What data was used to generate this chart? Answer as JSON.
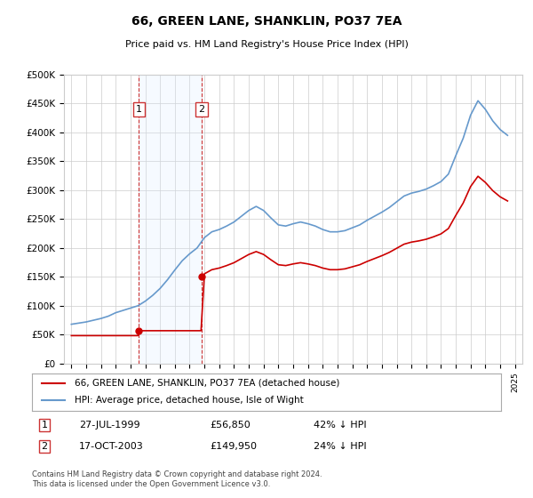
{
  "title": "66, GREEN LANE, SHANKLIN, PO37 7EA",
  "subtitle": "Price paid vs. HM Land Registry's House Price Index (HPI)",
  "legend_line1": "66, GREEN LANE, SHANKLIN, PO37 7EA (detached house)",
  "legend_line2": "HPI: Average price, detached house, Isle of Wight",
  "sale1_label": "1",
  "sale1_date": "27-JUL-1999",
  "sale1_price": 56850,
  "sale1_hpi": "42% ↓ HPI",
  "sale2_label": "2",
  "sale2_date": "17-OCT-2003",
  "sale2_price": 149950,
  "sale2_hpi": "24% ↓ HPI",
  "footer": "Contains HM Land Registry data © Crown copyright and database right 2024.\nThis data is licensed under the Open Government Licence v3.0.",
  "ylim": [
    0,
    500000
  ],
  "yticks": [
    0,
    50000,
    100000,
    150000,
    200000,
    250000,
    300000,
    350000,
    400000,
    450000,
    500000
  ],
  "hpi_color": "#6699cc",
  "price_color": "#cc0000",
  "background_color": "#ffffff",
  "grid_color": "#cccccc",
  "region_color": "#ddeeff",
  "sale1_year": 1999.57,
  "sale2_year": 2003.79
}
